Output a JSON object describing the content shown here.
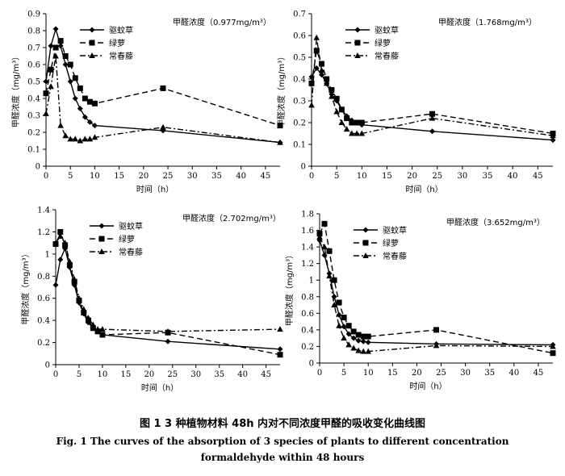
{
  "caption": {
    "chinese": "图 1   3 种植物材料 48h 内对不同浓度甲醛的吸收变化曲线图",
    "english_line1": "Fig. 1   The curves of the absorption of 3 species of plants to different concentration",
    "english_line2": "formaldehyde within 48 hours"
  },
  "colors": {
    "ink": "#000000",
    "background": "#ffffff"
  },
  "chart_data": [
    {
      "type": "line",
      "concentration_label": "甲醛浓度（0.977mg/m³）",
      "ylabel": "甲醛浓度（mg/m³）",
      "xlabel": "时间（h）",
      "xlim": [
        0,
        48
      ],
      "ylim": [
        0,
        0.9
      ],
      "xticks": [
        0,
        5,
        10,
        15,
        20,
        25,
        30,
        35,
        40,
        45
      ],
      "yticks": [
        0,
        0.1,
        0.2,
        0.3,
        0.4,
        0.5,
        0.6,
        0.7,
        0.8,
        0.9
      ],
      "ytick_labels": [
        "0",
        "0.1",
        "0.2",
        "0.3",
        "0.4",
        "0.5",
        "0.6",
        "0.7",
        "0.8",
        "0.9"
      ],
      "series": [
        {
          "name": "驱蚊草",
          "marker": "diamond",
          "dash": "solid",
          "x": [
            0,
            1,
            2,
            3,
            4,
            5,
            6,
            7,
            8,
            9,
            10,
            24,
            48
          ],
          "y": [
            0.5,
            0.71,
            0.81,
            0.71,
            0.6,
            0.5,
            0.4,
            0.34,
            0.29,
            0.26,
            0.24,
            0.21,
            0.14
          ]
        },
        {
          "name": "绿萝",
          "marker": "square",
          "dash": "dashed",
          "x": [
            0,
            1,
            2,
            3,
            4,
            5,
            6,
            7,
            8,
            9,
            10,
            24,
            48
          ],
          "y": [
            0.43,
            0.57,
            0.7,
            0.74,
            0.65,
            0.6,
            0.52,
            0.46,
            0.4,
            0.38,
            0.37,
            0.46,
            0.24
          ]
        },
        {
          "name": "常春藤",
          "marker": "triangle",
          "dash": "dashdot",
          "x": [
            0,
            1,
            2,
            3,
            4,
            5,
            6,
            7,
            8,
            9,
            10,
            24,
            48
          ],
          "y": [
            0.31,
            0.47,
            0.65,
            0.24,
            0.18,
            0.16,
            0.16,
            0.15,
            0.16,
            0.16,
            0.17,
            0.23,
            0.14
          ]
        }
      ]
    },
    {
      "type": "line",
      "concentration_label": "甲醛浓度（1.768mg/m³）",
      "ylabel": "甲醛浓度（mg/m³）",
      "xlabel": "时间（h）",
      "xlim": [
        0,
        48
      ],
      "ylim": [
        0,
        0.7
      ],
      "xticks": [
        0,
        5,
        10,
        15,
        20,
        25,
        30,
        35,
        40,
        45
      ],
      "yticks": [
        0,
        0.1,
        0.2,
        0.3,
        0.4,
        0.5,
        0.6,
        0.7
      ],
      "ytick_labels": [
        "0",
        "0.1",
        "0.2",
        "0.3",
        "0.4",
        "0.5",
        "0.6",
        "0.7"
      ],
      "series": [
        {
          "name": "驱蚊草",
          "marker": "diamond",
          "dash": "solid",
          "x": [
            0,
            1,
            2,
            3,
            4,
            5,
            6,
            7,
            8,
            9,
            10,
            24,
            48
          ],
          "y": [
            0.41,
            0.45,
            0.42,
            0.38,
            0.33,
            0.3,
            0.26,
            0.23,
            0.21,
            0.2,
            0.19,
            0.16,
            0.12
          ]
        },
        {
          "name": "绿萝",
          "marker": "square",
          "dash": "dashed",
          "x": [
            0,
            1,
            2,
            3,
            4,
            5,
            6,
            7,
            8,
            9,
            10,
            24,
            48
          ],
          "y": [
            0.38,
            0.53,
            0.47,
            0.4,
            0.35,
            0.31,
            0.26,
            0.22,
            0.2,
            0.2,
            0.2,
            0.24,
            0.15
          ]
        },
        {
          "name": "常春藤",
          "marker": "triangle",
          "dash": "dashdot",
          "x": [
            0,
            1,
            2,
            3,
            4,
            5,
            6,
            7,
            8,
            9,
            10,
            24,
            48
          ],
          "y": [
            0.28,
            0.59,
            0.44,
            0.38,
            0.32,
            0.25,
            0.2,
            0.17,
            0.15,
            0.15,
            0.15,
            0.22,
            0.14
          ]
        }
      ]
    },
    {
      "type": "line",
      "concentration_label": "甲醛浓度（2.702mg/m³）",
      "ylabel": "甲醛浓度（mg/m³）",
      "xlabel": "时间（h）",
      "xlim": [
        0,
        48
      ],
      "ylim": [
        0,
        1.4
      ],
      "xticks": [
        0,
        5,
        10,
        15,
        20,
        25,
        30,
        35,
        40,
        45
      ],
      "yticks": [
        0,
        0.2,
        0.4,
        0.6,
        0.8,
        1.0,
        1.2,
        1.4
      ],
      "ytick_labels": [
        "0",
        "0.2",
        "0.4",
        "0.6",
        "0.8",
        "1",
        "1.2",
        "1.4"
      ],
      "series": [
        {
          "name": "驱蚊草",
          "marker": "diamond",
          "dash": "solid",
          "x": [
            0,
            1,
            2,
            3,
            4,
            5,
            6,
            7,
            8,
            9,
            10,
            24,
            48
          ],
          "y": [
            0.72,
            0.95,
            1.05,
            0.88,
            0.72,
            0.56,
            0.46,
            0.38,
            0.33,
            0.3,
            0.27,
            0.21,
            0.14
          ]
        },
        {
          "name": "绿萝",
          "marker": "square",
          "dash": "dashed",
          "x": [
            0,
            1,
            2,
            3,
            4,
            5,
            6,
            7,
            8,
            9,
            10,
            24,
            48
          ],
          "y": [
            1.09,
            1.2,
            1.08,
            0.9,
            0.75,
            0.58,
            0.47,
            0.4,
            0.33,
            0.3,
            0.27,
            0.29,
            0.09
          ]
        },
        {
          "name": "常春藤",
          "marker": "triangle",
          "dash": "dashdot",
          "x": [
            0,
            1,
            2,
            3,
            4,
            5,
            6,
            7,
            8,
            9,
            10,
            24,
            48
          ],
          "y": [
            1.1,
            1.16,
            1.1,
            0.93,
            0.77,
            0.6,
            0.5,
            0.42,
            0.36,
            0.32,
            0.32,
            0.3,
            0.32
          ]
        }
      ]
    },
    {
      "type": "line",
      "concentration_label": "甲醛浓度（3.652mg/m³）",
      "ylabel": "甲醛浓度（mg/m³）",
      "xlabel": "时间（h）",
      "xlim": [
        0,
        48
      ],
      "ylim": [
        0,
        1.8
      ],
      "xticks": [
        0,
        5,
        10,
        15,
        20,
        25,
        30,
        35,
        40,
        45
      ],
      "yticks": [
        0,
        0.2,
        0.4,
        0.6,
        0.8,
        1.0,
        1.2,
        1.4,
        1.6,
        1.8
      ],
      "ytick_labels": [
        "0",
        "0.2",
        "0.4",
        "0.6",
        "0.8",
        "1",
        "1.2",
        "1.4",
        "1.6",
        "1.8"
      ],
      "series": [
        {
          "name": "驱蚊草",
          "marker": "diamond",
          "dash": "solid",
          "x": [
            0,
            1,
            2,
            3,
            4,
            5,
            6,
            7,
            8,
            9,
            10,
            24,
            48
          ],
          "y": [
            1.48,
            1.3,
            1.08,
            0.8,
            0.58,
            0.44,
            0.35,
            0.3,
            0.27,
            0.26,
            0.25,
            0.23,
            0.22
          ]
        },
        {
          "name": "绿萝",
          "marker": "square",
          "dash": "dashed",
          "x": [
            0,
            1,
            2,
            3,
            4,
            5,
            6,
            7,
            8,
            9,
            10,
            24,
            48
          ],
          "y": [
            1.56,
            1.68,
            1.35,
            1.0,
            0.73,
            0.55,
            0.45,
            0.38,
            0.34,
            0.32,
            0.32,
            0.4,
            0.12
          ]
        },
        {
          "name": "常春藤",
          "marker": "triangle",
          "dash": "dashdot",
          "x": [
            0,
            1,
            2,
            3,
            4,
            5,
            6,
            7,
            8,
            9,
            10,
            24,
            48
          ],
          "y": [
            1.52,
            1.4,
            1.05,
            0.7,
            0.45,
            0.3,
            0.22,
            0.18,
            0.15,
            0.14,
            0.14,
            0.21,
            0.2
          ]
        }
      ]
    }
  ]
}
